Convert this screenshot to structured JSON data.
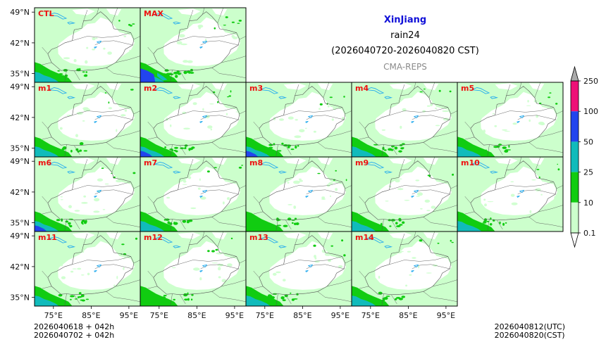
{
  "title": {
    "region": "XinJiang",
    "variable": "rain24",
    "time_range": "(2026040720-2026040820 CST)",
    "source": "CMA-REPS"
  },
  "footer": {
    "init_line1": "2026040618  +  042h",
    "init_line2": "2026040702  +  042h",
    "valid_utc": "2026040812(UTC)",
    "valid_cst": "2026040820(CST)"
  },
  "colors": {
    "levels": [
      "#ccffcc",
      "#11cc11",
      "#11bbbb",
      "#2244ee",
      "#ee1177",
      "#aaaaaa"
    ],
    "lake": "#22aaee",
    "border": "#555555",
    "label": "#ee1111"
  },
  "chart_data": {
    "type": "heatmap",
    "title": "XinJiang rain24 (2026040720-2026040820 CST)",
    "subtitle": "CMA-REPS",
    "panels": [
      "CTL",
      "MAX",
      "m1",
      "m2",
      "m3",
      "m4",
      "m5",
      "m6",
      "m7",
      "m8",
      "m9",
      "m10",
      "m11",
      "m12",
      "m13",
      "m14"
    ],
    "panel_intensity": {
      "CTL": 0.55,
      "MAX": 0.95,
      "m1": 0.5,
      "m2": 0.7,
      "m3": 0.6,
      "m4": 0.55,
      "m5": 0.5,
      "m6": 0.6,
      "m7": 0.5,
      "m8": 0.45,
      "m9": 0.5,
      "m10": 0.5,
      "m11": 0.55,
      "m12": 0.45,
      "m13": 0.5,
      "m14": 0.5
    },
    "xlabel": "",
    "ylabel": "",
    "x_ticks": [
      "75°E",
      "85°E",
      "95°E"
    ],
    "y_ticks": [
      "49°N",
      "42°N",
      "35°N"
    ],
    "xlim": [
      70,
      98
    ],
    "ylim": [
      33,
      50
    ],
    "colorbar": {
      "levels": [
        0.1,
        10,
        25,
        50,
        100,
        250
      ],
      "labels": [
        "0.1",
        "10",
        "25",
        "50",
        "100",
        "250"
      ],
      "extend": "both"
    }
  }
}
